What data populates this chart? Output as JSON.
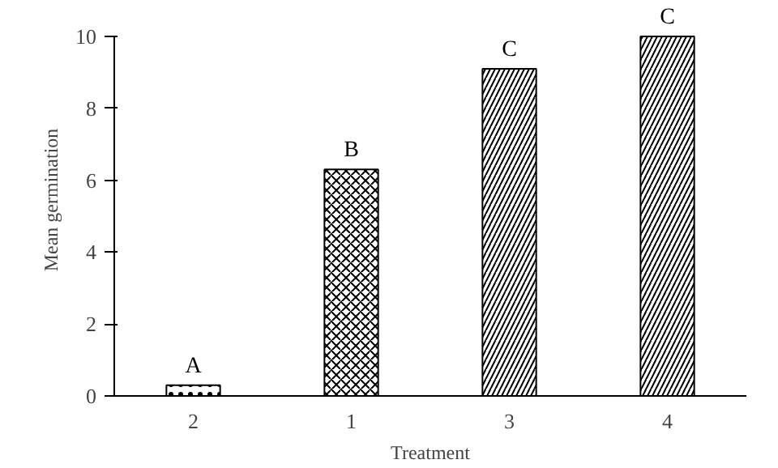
{
  "chart_data": {
    "type": "bar",
    "xlabel": "Treatment",
    "ylabel": "Mean germination",
    "categories": [
      "2",
      "1",
      "3",
      "4"
    ],
    "values": [
      0.3,
      6.3,
      9.1,
      10
    ],
    "color": "#000000",
    "ylim": [
      0,
      10
    ],
    "yticks": [
      0,
      2,
      4,
      6,
      8,
      10
    ],
    "grid": false,
    "annotations": [
      {
        "text": "A",
        "x": "2",
        "y": 0.3
      },
      {
        "text": "B",
        "x": "1",
        "y": 6.3
      },
      {
        "text": "C",
        "x": "3",
        "y": 9.1
      },
      {
        "text": "C",
        "x": "4",
        "y": 10
      }
    ]
  }
}
